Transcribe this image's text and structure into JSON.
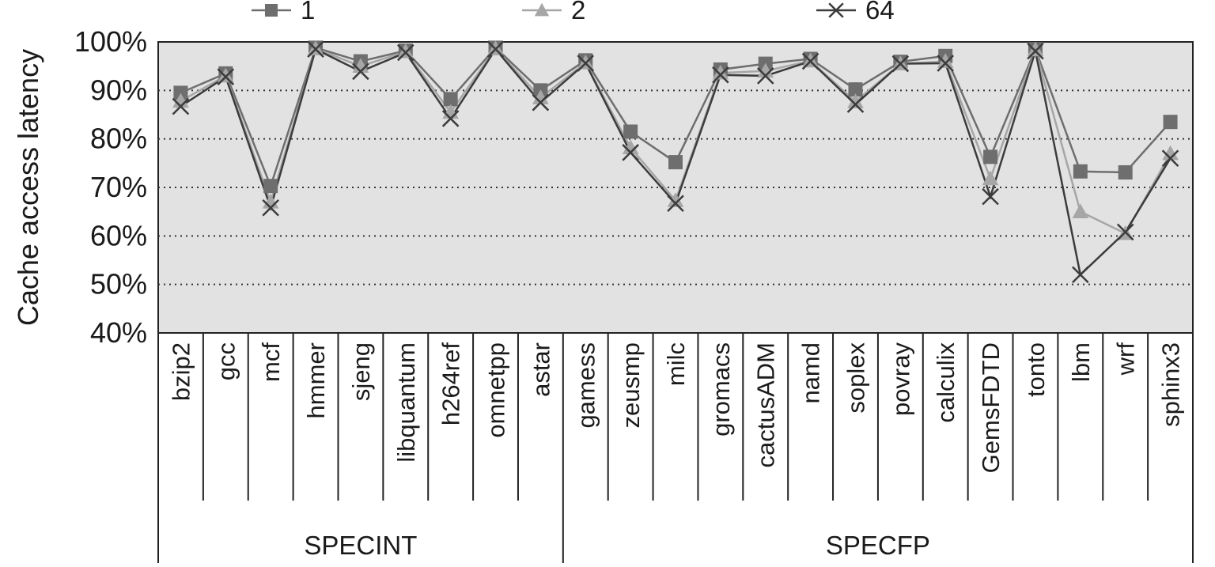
{
  "chart_data": {
    "type": "line",
    "ylabel": "Cache access latency",
    "xlabel": "",
    "ylim": [
      40,
      100
    ],
    "y_ticks": [
      "40%",
      "50%",
      "60%",
      "70%",
      "80%",
      "90%",
      "100%"
    ],
    "grid": "dotted horizontal",
    "legend_position": "top",
    "categories": [
      "bzip2",
      "gcc",
      "mcf",
      "hmmer",
      "sjeng",
      "libquantum",
      "h264ref",
      "omnetpp",
      "astar",
      "gamess",
      "zeusmp",
      "milc",
      "gromacs",
      "cactusADM",
      "namd",
      "soplex",
      "povray",
      "calculix",
      "GemsFDTD",
      "tonto",
      "lbm",
      "wrf",
      "sphinx3"
    ],
    "groups": [
      {
        "label": "SPECINT",
        "count": 9
      },
      {
        "label": "SPECFP",
        "count": 14
      }
    ],
    "series": [
      {
        "name": "1",
        "marker": "square",
        "color": "#6e6e6e",
        "values": [
          89.5,
          93.5,
          70.3,
          98.8,
          96.0,
          98.2,
          88.2,
          98.8,
          90.0,
          96.2,
          81.5,
          75.2,
          94.3,
          95.5,
          96.5,
          90.2,
          95.9,
          97.1,
          76.3,
          98.5,
          73.3,
          73.1,
          83.5
        ]
      },
      {
        "name": "2",
        "marker": "triangle",
        "color": "#a6a6a6",
        "values": [
          87.8,
          93.0,
          67.0,
          98.6,
          95.0,
          98.0,
          85.5,
          98.6,
          88.5,
          95.7,
          78.2,
          67.3,
          93.6,
          94.0,
          96.1,
          87.7,
          95.5,
          96.0,
          71.8,
          98.4,
          65.0,
          60.5,
          77.0
        ]
      },
      {
        "name": "64",
        "marker": "x",
        "color": "#3c3c3c",
        "values": [
          86.7,
          92.8,
          65.8,
          98.5,
          93.9,
          97.8,
          84.2,
          98.5,
          87.5,
          95.6,
          77.2,
          66.7,
          93.2,
          93.0,
          96.0,
          87.1,
          95.5,
          95.6,
          68.1,
          98.1,
          52.0,
          60.8,
          76.0
        ]
      }
    ]
  }
}
